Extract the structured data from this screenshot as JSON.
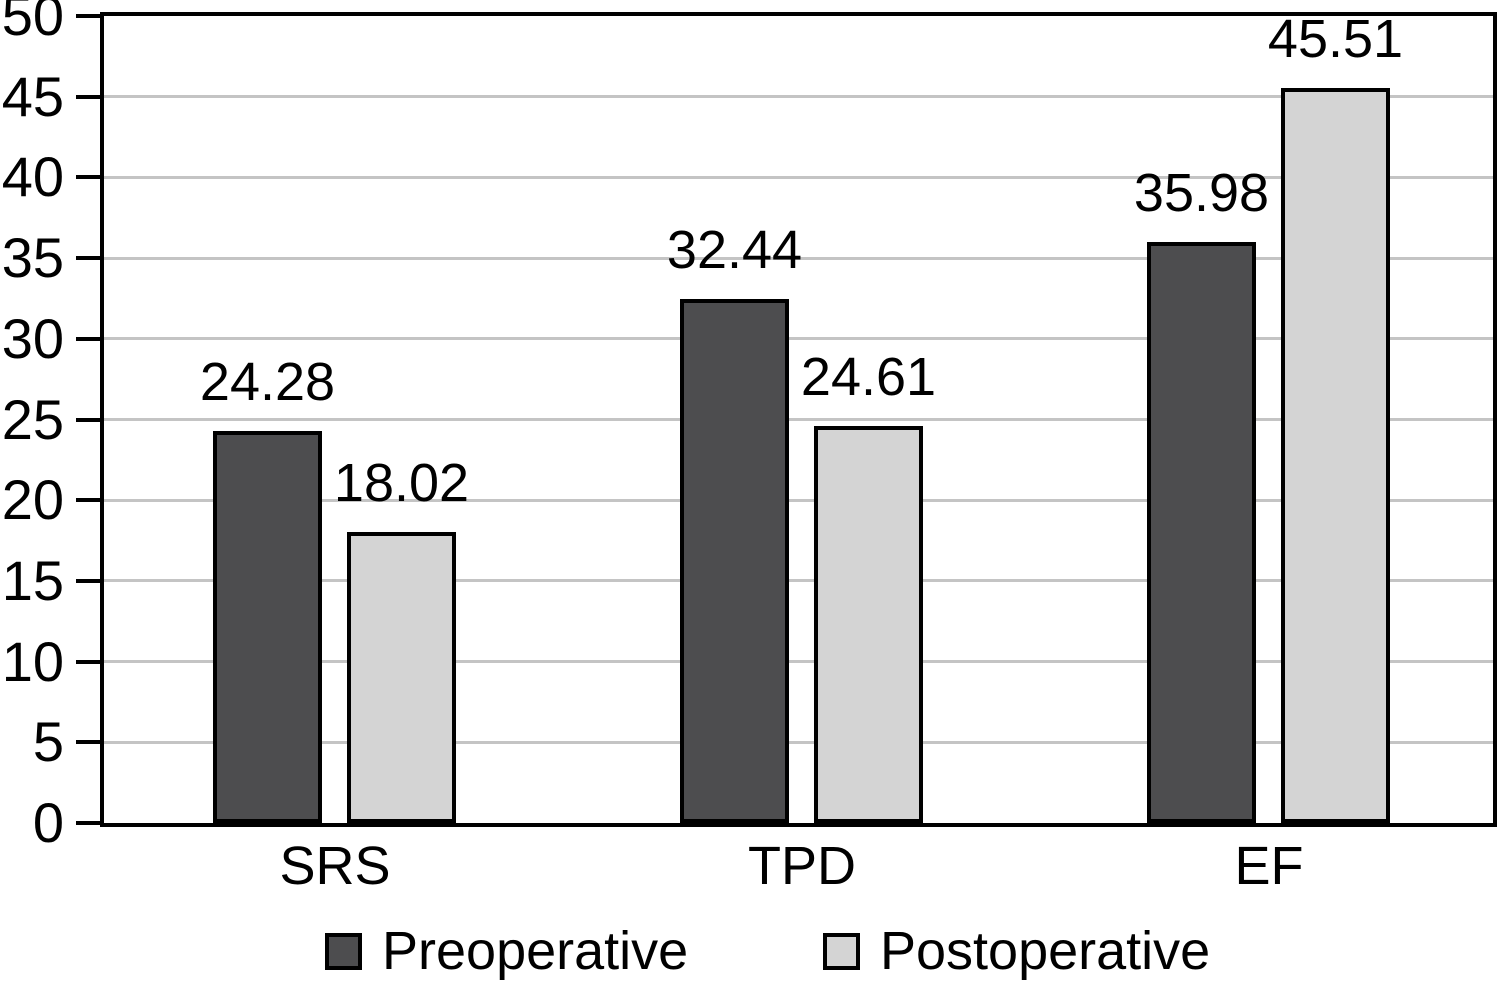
{
  "chart_data": {
    "type": "bar",
    "title": "",
    "xlabel": "",
    "ylabel": "",
    "categories": [
      "SRS",
      "TPD",
      "EF"
    ],
    "series": [
      {
        "name": "Preoperative",
        "color": "#4d4d4f",
        "values": [
          24.28,
          32.44,
          35.98
        ]
      },
      {
        "name": "Postoperative",
        "color": "#d4d4d4",
        "values": [
          18.02,
          24.61,
          45.51
        ]
      }
    ],
    "value_labels": [
      [
        "24.28",
        "32.44",
        "35.98"
      ],
      [
        "18.02",
        "24.61",
        "45.51"
      ]
    ],
    "ylim": [
      0,
      50
    ],
    "ytick_step": 5,
    "yticks": [
      0,
      5,
      10,
      15,
      20,
      25,
      30,
      35,
      40,
      45,
      50
    ],
    "grid": true,
    "gridline_color": "#c4c4c4",
    "axis_color": "#000000",
    "bar_border_color": "#000000",
    "background_color": "#ffffff",
    "legend_position": "bottom"
  }
}
